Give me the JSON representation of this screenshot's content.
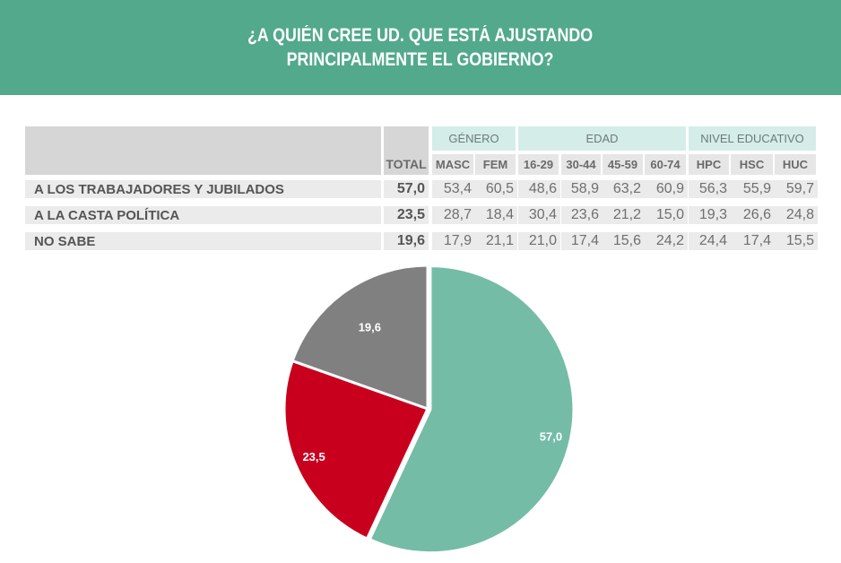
{
  "title_lines": [
    "¿A QUIÉN CREE UD. QUE ESTÁ AJUSTANDO",
    "PRINCIPALMENTE EL GOBIERNO?"
  ],
  "table": {
    "groups": [
      "GÉNERO",
      "EDAD",
      "NIVEL EDUCATIVO"
    ],
    "total_header": "TOTAL",
    "columns": [
      "MASC",
      "FEM",
      "16-29",
      "30-44",
      "45-59",
      "60-74",
      "HPC",
      "HSC",
      "HUC"
    ],
    "rows": [
      {
        "label": "A LOS TRABAJADORES Y JUBILADOS",
        "total": "57,0",
        "values": [
          "53,4",
          "60,5",
          "48,6",
          "58,9",
          "63,2",
          "60,9",
          "56,3",
          "55,9",
          "59,7"
        ]
      },
      {
        "label": "A LA CASTA POLÍTICA",
        "total": "23,5",
        "values": [
          "28,7",
          "18,4",
          "30,4",
          "23,6",
          "21,2",
          "15,0",
          "19,3",
          "26,6",
          "24,8"
        ]
      },
      {
        "label": "NO SABE",
        "total": "19,6",
        "values": [
          "17,9",
          "21,1",
          "21,0",
          "17,4",
          "15,6",
          "24,2",
          "24,4",
          "17,4",
          "15,5"
        ]
      }
    ]
  },
  "chart_data": {
    "type": "pie",
    "categories": [
      "A LOS TRABAJADORES Y JUBILADOS",
      "A LA CASTA POLÍTICA",
      "NO SABE"
    ],
    "values": [
      57.0,
      23.5,
      19.6
    ],
    "data_labels": [
      "57,0",
      "23,5",
      "19,6"
    ],
    "colors": [
      "#74bca6",
      "#c8001e",
      "#808080"
    ],
    "title": "",
    "legend": "none"
  },
  "colors": {
    "header": "#52a98b",
    "group_header": "#d4ede8"
  }
}
